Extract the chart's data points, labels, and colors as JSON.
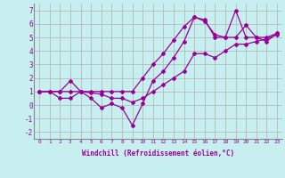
{
  "background_color": "#c8eff0",
  "grid_color": "#b0b0b0",
  "line_color": "#990099",
  "marker": "D",
  "markersize": 2,
  "linewidth": 0.9,
  "xlabel": "Windchill (Refroidissement éolien,°C)",
  "xlim": [
    -0.5,
    23.5
  ],
  "ylim": [
    -2.5,
    7.5
  ],
  "xticks": [
    0,
    1,
    2,
    3,
    4,
    5,
    6,
    7,
    8,
    9,
    10,
    11,
    12,
    13,
    14,
    15,
    16,
    17,
    18,
    19,
    20,
    21,
    22,
    23
  ],
  "yticks": [
    -2,
    -1,
    0,
    1,
    2,
    3,
    4,
    5,
    6,
    7
  ],
  "series": [
    {
      "x": [
        0,
        1,
        2,
        3,
        4,
        5,
        6,
        7,
        8,
        9,
        10,
        11,
        12,
        13,
        14,
        15,
        16,
        17,
        18,
        19,
        20,
        21,
        22,
        23
      ],
      "y": [
        1,
        1,
        1,
        1,
        1,
        1,
        1,
        1,
        1,
        1,
        2,
        3,
        3.8,
        4.8,
        5.8,
        6.5,
        6.2,
        5.2,
        5,
        7,
        5,
        5,
        5,
        5.3
      ]
    },
    {
      "x": [
        0,
        1,
        2,
        3,
        4,
        5,
        6,
        7,
        8,
        9,
        10,
        11,
        12,
        13,
        14,
        15,
        16,
        17,
        18,
        19,
        20,
        21,
        22,
        23
      ],
      "y": [
        1,
        1,
        0.5,
        0.5,
        1,
        0.5,
        -0.2,
        0.1,
        -0.2,
        -1.5,
        0.1,
        1.8,
        2.5,
        3.5,
        4.7,
        6.5,
        6.3,
        5,
        5,
        5,
        5.9,
        5,
        4.7,
        5.3
      ]
    },
    {
      "x": [
        0,
        1,
        2,
        3,
        4,
        5,
        6,
        7,
        8,
        9,
        10,
        11,
        12,
        13,
        14,
        15,
        16,
        17,
        18,
        19,
        20,
        21,
        22,
        23
      ],
      "y": [
        1,
        1,
        1,
        1.8,
        1,
        0.9,
        0.8,
        0.5,
        0.5,
        0.2,
        0.5,
        1.0,
        1.5,
        2.0,
        2.5,
        3.8,
        3.8,
        3.5,
        4,
        4.5,
        4.5,
        4.7,
        4.9,
        5.2
      ]
    }
  ]
}
